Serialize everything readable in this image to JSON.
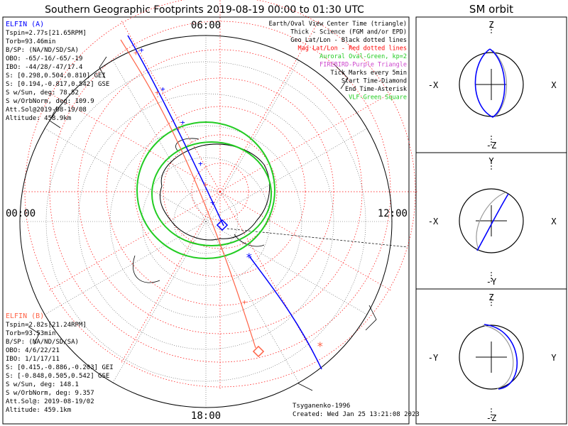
{
  "title": "Southern Geographic Footprints 2019-08-19 00:00 to 01:30 UTC",
  "sm_title": "SM orbit",
  "time_labels": {
    "top": "06:00",
    "left": "00:00",
    "right": "12:00",
    "bottom": "18:00"
  },
  "legend": [
    {
      "text": "Earth/Oval View Center Time (triangle)",
      "color": "#000000"
    },
    {
      "text": "Thick - Science (FGM and/or EPD)",
      "color": "#000000"
    },
    {
      "text": "Geo Lat/Lon - Black dotted lines",
      "color": "#000000"
    },
    {
      "text": "Mag Lat/Lon - Red dotted lines",
      "color": "#ff0000"
    },
    {
      "text": "Auroral Oval-Green, kp=2",
      "color": "#22cc22"
    },
    {
      "text": "FIREBIRD-Purple Triangle",
      "color": "#cc44cc"
    },
    {
      "text": "Tick Marks every 5min",
      "color": "#000000"
    },
    {
      "text": "Start Time-Diamond",
      "color": "#000000"
    },
    {
      "text": "End Time-Asterisk",
      "color": "#000000"
    },
    {
      "text": "VLF-Green Square",
      "color": "#22cc22"
    }
  ],
  "elfin_a": {
    "color": "#0000ff",
    "header": "ELFIN (A)",
    "lines": [
      "Tspin=2.77s[21.65RPM]",
      "Torb=93.46min",
      "B/SP: (NA/ND/SD/SA)",
      "OBO: -65/-16/-65/-19",
      "IBO: -44/28/-47/17.4",
      "S: [0.298,0.504,0.810] GEI",
      "S: [0.194,-0.817,0.542] GSE",
      "S w/Sun, deg: 78.52",
      "S w/OrbNorm, deg: 109.9",
      "Att.Sol@2019-08-19/08",
      "Altitude: 458.9km"
    ]
  },
  "elfin_b": {
    "color": "#ff6347",
    "header": "ELFIN (B)",
    "lines": [
      "Tspin=2.82s[21.24RPM]",
      "Torb=93.53min",
      "B/SP: (NA/ND/SD/SA)",
      "OBO: 4/6/22/21",
      "IBO: 1/1/17/11",
      "S: [0.415,-0.886,-0.203] GEI",
      "S: [-0.848,0.505,0.542] GSE",
      "S w/Sun, deg: 148.1",
      "S w/OrbNorm, deg: 9.357",
      "Att.Sol@: 2019-08-19/02",
      "Altitude: 459.1km"
    ]
  },
  "credits": {
    "author": "Tsyganenko-1996",
    "created": "Created: Wed Jan 25 13:21:08 2023"
  },
  "sm_panels": [
    {
      "top": "Z",
      "bottom": "-Z",
      "left": "-X",
      "right": "X"
    },
    {
      "top": "Y",
      "bottom": "-Y",
      "left": "-X",
      "right": "X"
    },
    {
      "top": "Z",
      "bottom": "-Z",
      "left": "-Y",
      "right": "Y"
    }
  ],
  "colors": {
    "elfin_a": "#0000ff",
    "elfin_b": "#ff6347",
    "oval": "#22cc22",
    "mag_grid": "#ff0000"
  }
}
